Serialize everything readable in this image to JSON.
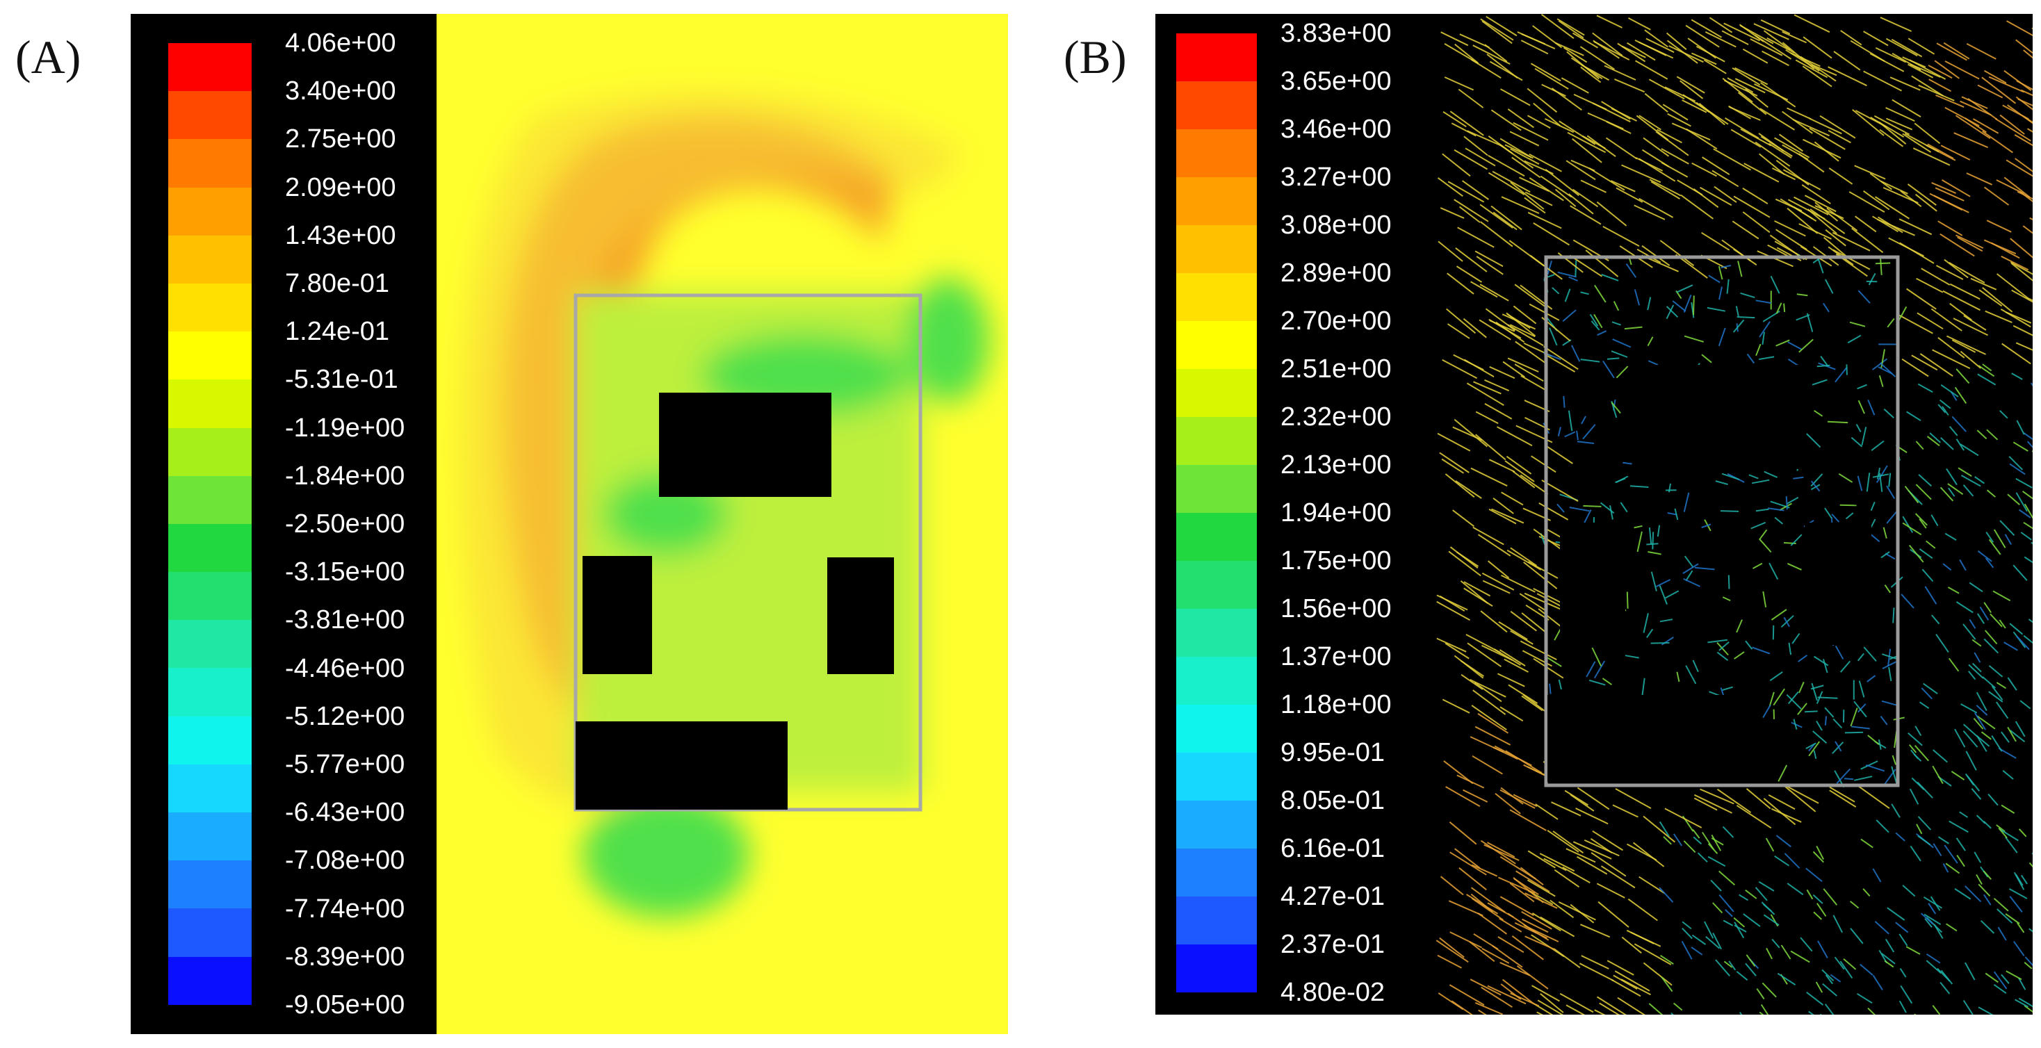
{
  "panels": [
    {
      "label": "(A)",
      "legend_ticks": [
        "4.06e+00",
        "3.40e+00",
        "2.75e+00",
        "2.09e+00",
        "1.43e+00",
        "7.80e-01",
        "1.24e-01",
        "-5.31e-01",
        "-1.19e+00",
        "-1.84e+00",
        "-2.50e+00",
        "-3.15e+00",
        "-3.81e+00",
        "-4.46e+00",
        "-5.12e+00",
        "-5.77e+00",
        "-6.43e+00",
        "-7.08e+00",
        "-7.74e+00",
        "-8.39e+00",
        "-9.05e+00"
      ],
      "colormap": [
        "#ff0000",
        "#ff4800",
        "#ff7a00",
        "#ffa000",
        "#ffc000",
        "#ffe000",
        "#ffff00",
        "#d8f800",
        "#a6ef1a",
        "#6ee438",
        "#22d840",
        "#22e070",
        "#1ee8a4",
        "#18f0cc",
        "#10f4ee",
        "#16d8ff",
        "#1aacff",
        "#1c80ff",
        "#1e58ff",
        "#0a10ff"
      ],
      "field_colors": {
        "background": "#ffff2e",
        "high": "#f6a627",
        "mid": "#f7d23a",
        "low": "#bdf03c",
        "lowest": "#4fe04b",
        "block": "#000000",
        "outline": "#a8a8a8"
      }
    },
    {
      "label": "(B)",
      "legend_ticks": [
        "3.83e+00",
        "3.65e+00",
        "3.46e+00",
        "3.27e+00",
        "3.08e+00",
        "2.89e+00",
        "2.70e+00",
        "2.51e+00",
        "2.32e+00",
        "2.13e+00",
        "1.94e+00",
        "1.75e+00",
        "1.56e+00",
        "1.37e+00",
        "1.18e+00",
        "9.95e-01",
        "8.05e-01",
        "6.16e-01",
        "4.27e-01",
        "2.37e-01",
        "4.80e-02"
      ],
      "colormap": [
        "#ff0000",
        "#ff4800",
        "#ff7a00",
        "#ffa000",
        "#ffc000",
        "#ffe000",
        "#ffff00",
        "#d8f800",
        "#a6ef1a",
        "#6ee438",
        "#22d840",
        "#22e070",
        "#1ee8a4",
        "#18f0cc",
        "#10f4ee",
        "#16d8ff",
        "#1aacff",
        "#1c80ff",
        "#1e58ff",
        "#0a10ff"
      ],
      "field_colors": {
        "background": "#000000",
        "fast": "#e6d23a",
        "faster": "#e9a334",
        "medium": "#7fdc3c",
        "slow": "#1fb3a9",
        "slowest": "#1f74c9",
        "block": "#000000",
        "outline": "#9a9a9a"
      }
    }
  ]
}
